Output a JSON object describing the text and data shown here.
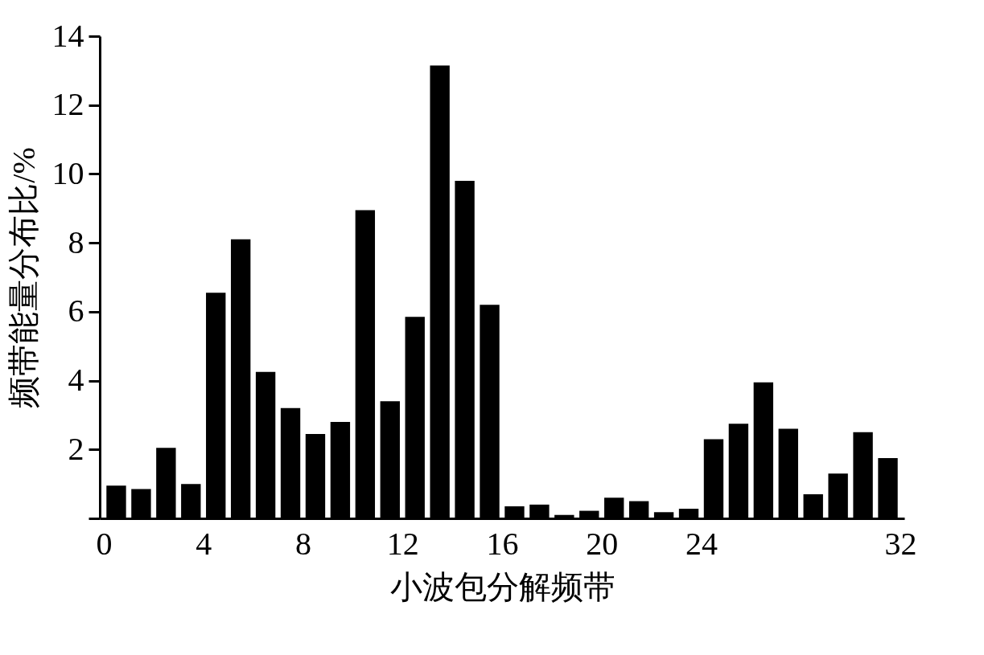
{
  "chart_data": {
    "type": "bar",
    "xlabel": "小波包分解频带",
    "ylabel": "频带能量分布比/%",
    "x": [
      0.5,
      1.5,
      2.5,
      3.5,
      4.5,
      5.5,
      6.5,
      7.5,
      8.5,
      9.5,
      10.5,
      11.5,
      12.5,
      13.5,
      14.5,
      15.5,
      16.5,
      17.5,
      18.5,
      19.5,
      20.5,
      21.5,
      22.5,
      23.5,
      24.5,
      25.5,
      26.5,
      27.5,
      28.5,
      29.5,
      30.5,
      31.5
    ],
    "values": [
      0.95,
      0.85,
      2.05,
      1.0,
      6.55,
      8.1,
      4.25,
      3.2,
      2.45,
      2.8,
      8.95,
      3.4,
      5.85,
      13.15,
      9.8,
      6.2,
      0.35,
      0.4,
      0.1,
      0.22,
      0.6,
      0.5,
      0.18,
      0.28,
      2.3,
      2.75,
      3.95,
      2.6,
      0.7,
      1.3,
      2.5,
      1.75
    ],
    "color": "#000000",
    "xlim": [
      0,
      32
    ],
    "xticks": [
      0,
      4,
      8,
      12,
      16,
      20,
      24,
      32
    ],
    "ylim": [
      0,
      14
    ],
    "yticks": [
      {
        "value": 0,
        "label": null
      },
      2,
      4,
      6,
      8,
      10,
      12,
      14
    ],
    "grid": false
  }
}
